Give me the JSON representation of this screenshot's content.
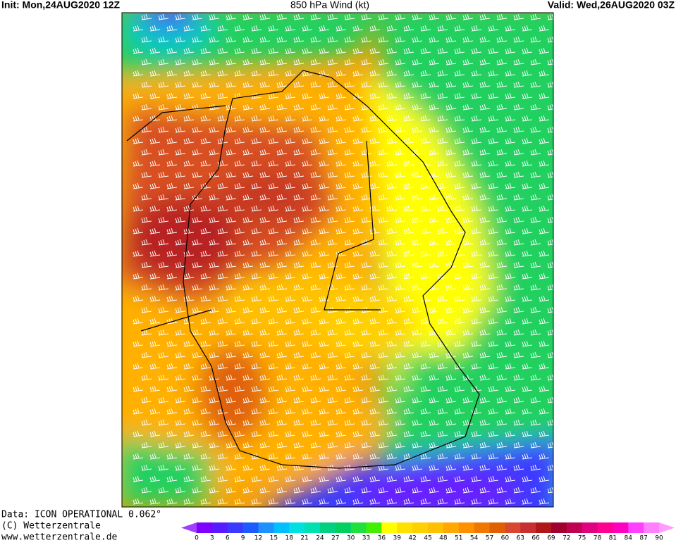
{
  "header": {
    "init": "Init: Mon,24AUG2020 12Z",
    "title": "850 hPa Wind (kt)",
    "valid": "Valid: Wed,26AUG2020 03Z"
  },
  "footer": {
    "data": "Data: ICON OPERATIONAL 0.062°",
    "copyright": "(C) Wetterzentrale",
    "url": "www.wetterzentrale.de"
  },
  "legend": {
    "ticks": [
      0,
      3,
      6,
      9,
      12,
      15,
      18,
      21,
      24,
      27,
      30,
      33,
      36,
      39,
      42,
      45,
      48,
      51,
      54,
      57,
      60,
      63,
      66,
      69,
      72,
      75,
      78,
      81,
      84,
      87,
      90
    ],
    "colors": [
      "#7f00ff",
      "#5a1aff",
      "#3a3aff",
      "#1e5aff",
      "#1e90ff",
      "#00bfff",
      "#00e0e0",
      "#00e0b0",
      "#00d080",
      "#00d060",
      "#20e040",
      "#40f000",
      "#ffff00",
      "#ffe000",
      "#ffd000",
      "#ffc000",
      "#ffa800",
      "#ff9000",
      "#f07800",
      "#e06000",
      "#d84830",
      "#c83030",
      "#b01818",
      "#a00030",
      "#c00050",
      "#e00080",
      "#ff0090",
      "#ff00c0",
      "#ff40ff",
      "#ff80ff"
    ],
    "under_color": "#a040ff",
    "over_color": "#ff9cff"
  }
}
